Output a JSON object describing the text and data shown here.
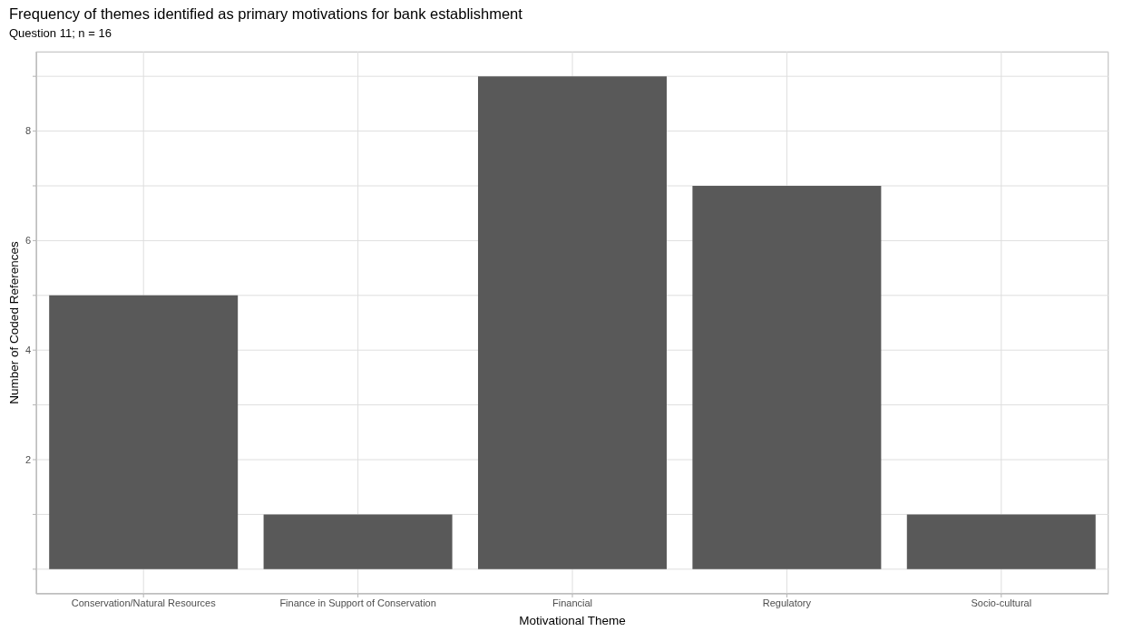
{
  "chart_data": {
    "type": "bar",
    "title": "Frequency of themes identified as primary motivations for bank establishment",
    "subtitle": "Question 11; n = 16",
    "xlabel": "Motivational Theme",
    "ylabel": "Number of Coded References",
    "categories": [
      "Conservation/Natural Resources",
      "Finance in Support of Conservation",
      "Financial",
      "Regulatory",
      "Socio-cultural"
    ],
    "values": [
      5,
      1,
      9,
      7,
      1
    ],
    "color": "#595959",
    "ylim": [
      -0.45,
      9.45
    ],
    "yticks": [
      {
        "value": 0,
        "label": null
      },
      {
        "value": 1,
        "label": null
      },
      2,
      {
        "value": 3,
        "label": null
      },
      4,
      {
        "value": 5,
        "label": null
      },
      6,
      {
        "value": 7,
        "label": null
      },
      8,
      {
        "value": 9,
        "label": null
      }
    ],
    "grid": true
  }
}
